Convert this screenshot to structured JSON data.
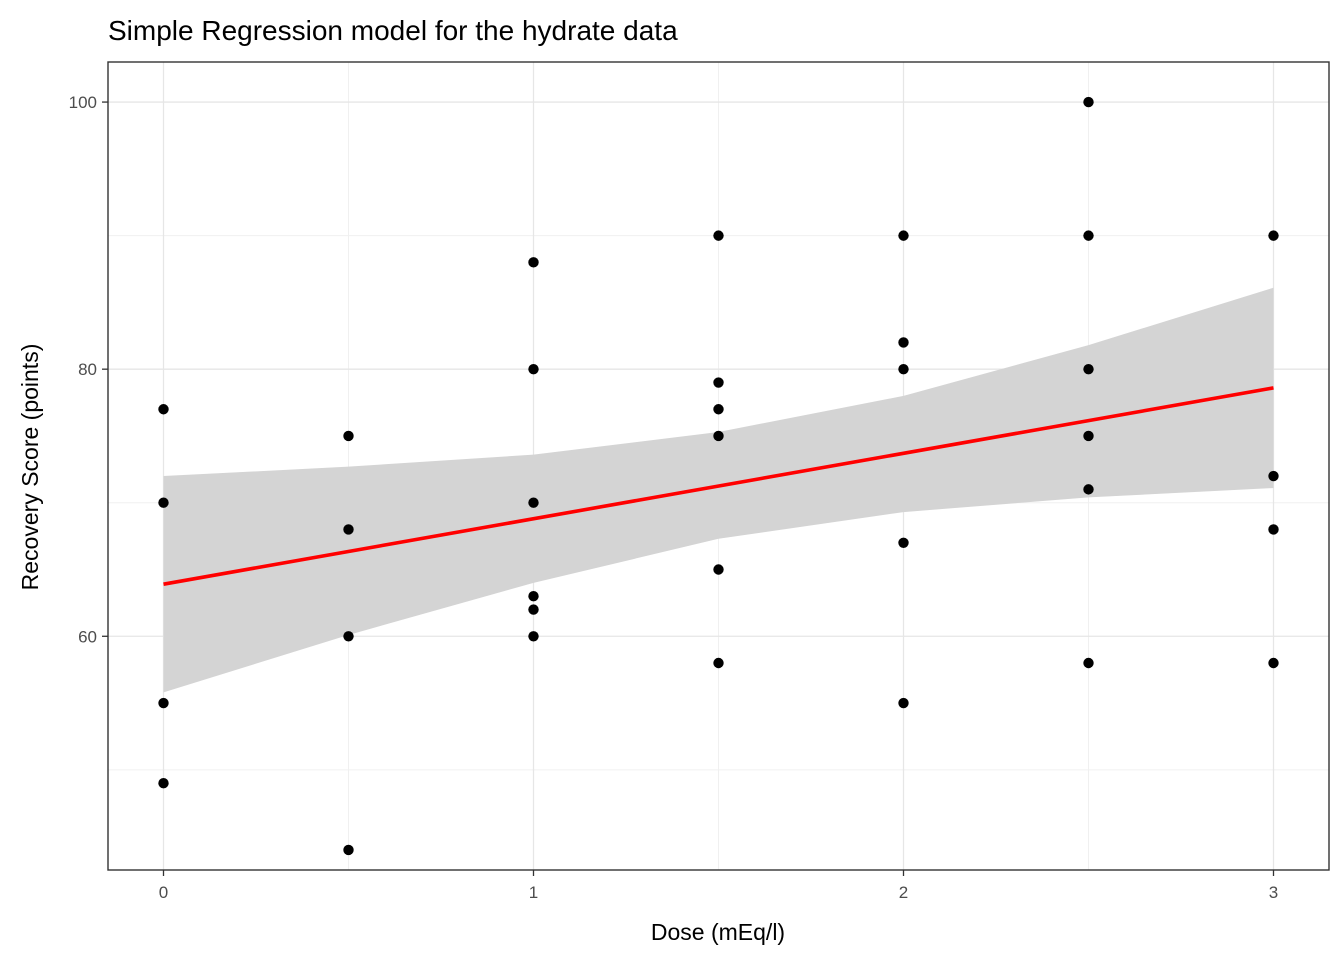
{
  "chart_data": {
    "type": "scatter",
    "title": "Simple Regression model for the hydrate data",
    "xlabel": "Dose (mEq/l)",
    "ylabel": "Recovery Score (points)",
    "xlim": [
      -0.15,
      3.15
    ],
    "ylim": [
      42.5,
      103
    ],
    "x_ticks": [
      0,
      1,
      2,
      3
    ],
    "x_minor_ticks": [
      0.5,
      1.5,
      2.5
    ],
    "y_ticks": [
      60,
      80,
      100
    ],
    "y_minor_ticks": [
      50,
      70,
      90
    ],
    "grid": true,
    "points": [
      {
        "x": 0,
        "y": 77
      },
      {
        "x": 0,
        "y": 70
      },
      {
        "x": 0,
        "y": 55
      },
      {
        "x": 0,
        "y": 49
      },
      {
        "x": 0.5,
        "y": 75
      },
      {
        "x": 0.5,
        "y": 68
      },
      {
        "x": 0.5,
        "y": 60
      },
      {
        "x": 0.5,
        "y": 44
      },
      {
        "x": 1,
        "y": 88
      },
      {
        "x": 1,
        "y": 80
      },
      {
        "x": 1,
        "y": 70
      },
      {
        "x": 1,
        "y": 63
      },
      {
        "x": 1,
        "y": 62
      },
      {
        "x": 1,
        "y": 60
      },
      {
        "x": 1.5,
        "y": 90
      },
      {
        "x": 1.5,
        "y": 79
      },
      {
        "x": 1.5,
        "y": 77
      },
      {
        "x": 1.5,
        "y": 75
      },
      {
        "x": 1.5,
        "y": 65
      },
      {
        "x": 1.5,
        "y": 58
      },
      {
        "x": 2,
        "y": 90
      },
      {
        "x": 2,
        "y": 82
      },
      {
        "x": 2,
        "y": 80
      },
      {
        "x": 2,
        "y": 67
      },
      {
        "x": 2,
        "y": 55
      },
      {
        "x": 2.5,
        "y": 100
      },
      {
        "x": 2.5,
        "y": 90
      },
      {
        "x": 2.5,
        "y": 80
      },
      {
        "x": 2.5,
        "y": 75
      },
      {
        "x": 2.5,
        "y": 71
      },
      {
        "x": 2.5,
        "y": 58
      },
      {
        "x": 3,
        "y": 90
      },
      {
        "x": 3,
        "y": 72
      },
      {
        "x": 3,
        "y": 68
      },
      {
        "x": 3,
        "y": 58
      }
    ],
    "regression": {
      "intercept": 63.9,
      "slope": 4.9,
      "x_range": [
        0,
        3
      ],
      "color": "#ff0000",
      "ci_color": "#d4d4d4",
      "ci_upper": [
        [
          0,
          72.0
        ],
        [
          0.5,
          72.7
        ],
        [
          1,
          73.6
        ],
        [
          1.5,
          75.3
        ],
        [
          2,
          78.0
        ],
        [
          2.5,
          81.8
        ],
        [
          3,
          86.1
        ]
      ],
      "ci_lower": [
        [
          0,
          55.8
        ],
        [
          0.5,
          60.1
        ],
        [
          1,
          64.0
        ],
        [
          1.5,
          67.3
        ],
        [
          2,
          69.3
        ],
        [
          2.5,
          70.4
        ],
        [
          3,
          71.1
        ]
      ]
    },
    "point_color": "#000000"
  }
}
